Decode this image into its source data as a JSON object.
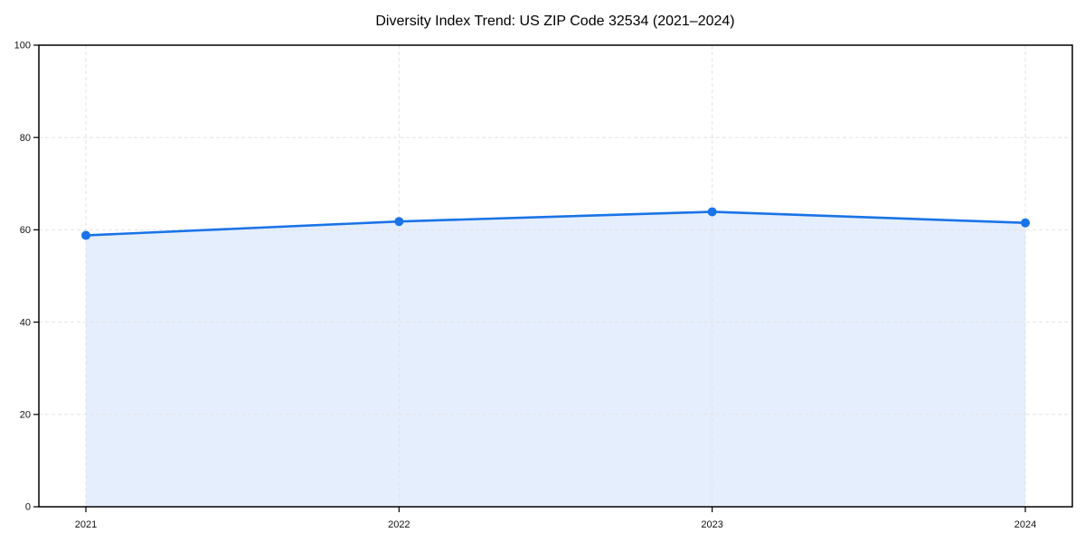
{
  "chart_data": {
    "type": "area",
    "title": "Diversity Index Trend: US ZIP Code 32534 (2021–2024)",
    "categories": [
      "2021",
      "2022",
      "2023",
      "2024"
    ],
    "series": [
      {
        "name": "Diversity Index",
        "values": [
          58.8,
          61.8,
          63.9,
          61.5
        ]
      }
    ],
    "xlabel": "",
    "ylabel": "",
    "ylim": [
      0,
      100
    ],
    "yticks": [
      0,
      20,
      40,
      60,
      80,
      100
    ],
    "grid": true,
    "grid_style": "dashed",
    "legend_position": "none",
    "marker": "circle",
    "colors": {
      "line": "#1a73e8",
      "marker": "#1a73e8",
      "area_fill": "#e4eefc",
      "grid": "#e3e3e3",
      "axis": "#000000",
      "tick_text": "#111111",
      "background": "#ffffff"
    }
  }
}
